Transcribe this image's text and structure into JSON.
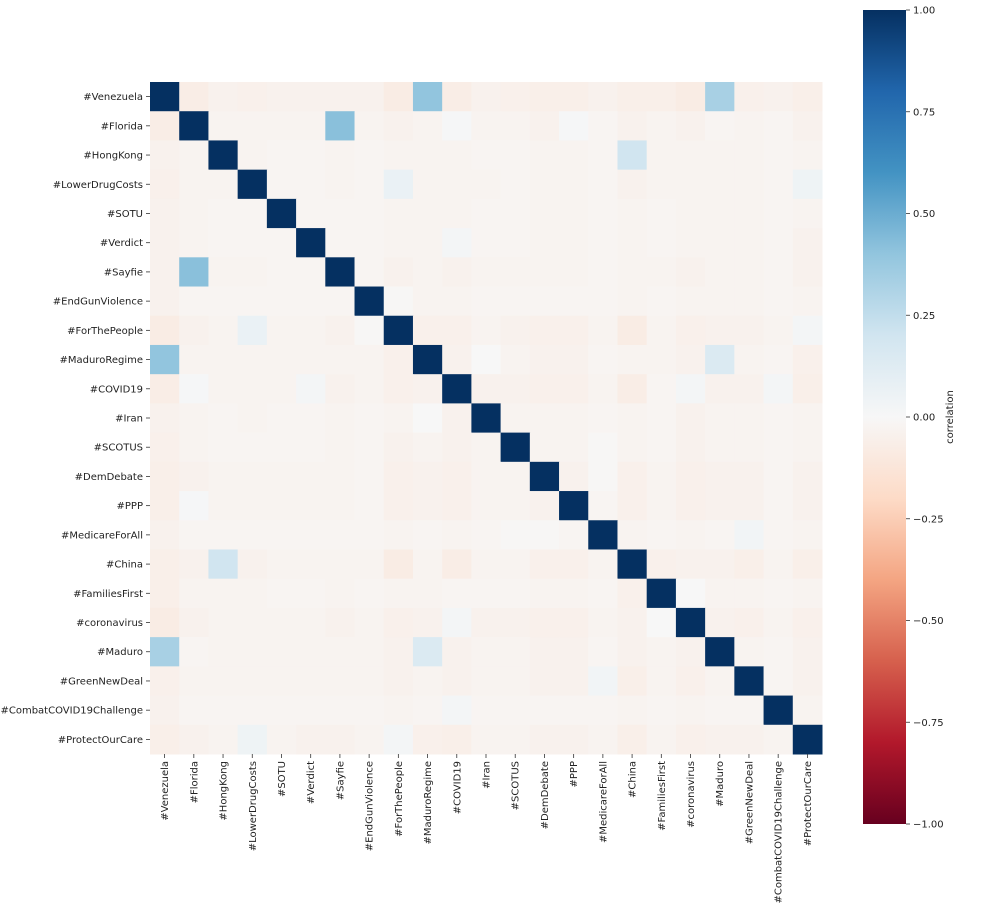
{
  "chart_data": {
    "type": "heatmap",
    "title": "",
    "colorbar_label": "correlation",
    "colormap": "RdBu_r",
    "vmin": -1.0,
    "vmax": 1.0,
    "colorbar_ticks": [
      "1.00",
      "0.75",
      "0.50",
      "0.25",
      "0.00",
      "−0.25",
      "−0.50",
      "−0.75",
      "−1.00"
    ],
    "colorbar_tick_values": [
      1.0,
      0.75,
      0.5,
      0.25,
      0.0,
      -0.25,
      -0.5,
      -0.75,
      -1.0
    ],
    "colormap_stops": [
      "#67001f",
      "#b2182b",
      "#d6604d",
      "#f4a582",
      "#fddbc7",
      "#f7f7f7",
      "#d1e5f0",
      "#92c5de",
      "#4393c3",
      "#2166ac",
      "#053061"
    ],
    "labels": [
      "#Venezuela",
      "#Florida",
      "#HongKong",
      "#LowerDrugCosts",
      "#SOTU",
      "#Verdict",
      "#Sayfie",
      "#EndGunViolence",
      "#ForThePeople",
      "#MaduroRegime",
      "#COVID19",
      "#Iran",
      "#SCOTUS",
      "#DemDebate",
      "#PPP",
      "#MedicareForAll",
      "#China",
      "#FamiliesFirst",
      "#coronavirus",
      "#Maduro",
      "#GreenNewDeal",
      "#CombatCOVID19Challenge",
      "#ProtectOurCare"
    ],
    "matrix": [
      [
        1,
        -0.07,
        -0.04,
        -0.05,
        -0.04,
        -0.04,
        -0.04,
        -0.04,
        -0.08,
        0.4,
        -0.07,
        -0.04,
        -0.05,
        -0.06,
        -0.06,
        -0.04,
        -0.06,
        -0.06,
        -0.08,
        0.33,
        -0.05,
        -0.04,
        -0.06
      ],
      [
        -0.07,
        1,
        -0.03,
        -0.03,
        -0.03,
        -0.03,
        0.42,
        -0.03,
        -0.04,
        -0.03,
        0.01,
        -0.03,
        -0.03,
        -0.04,
        0.01,
        -0.02,
        -0.04,
        -0.03,
        -0.04,
        -0.02,
        -0.03,
        -0.02,
        -0.04
      ],
      [
        -0.04,
        -0.03,
        1,
        -0.03,
        -0.02,
        -0.02,
        -0.03,
        -0.02,
        -0.03,
        -0.03,
        -0.03,
        -0.02,
        -0.02,
        -0.03,
        -0.03,
        -0.02,
        0.2,
        -0.03,
        -0.03,
        -0.03,
        -0.03,
        -0.02,
        -0.03
      ],
      [
        -0.05,
        -0.03,
        -0.03,
        1,
        -0.02,
        -0.02,
        -0.03,
        -0.02,
        0.07,
        -0.03,
        -0.03,
        -0.03,
        -0.02,
        -0.03,
        -0.03,
        -0.02,
        -0.04,
        -0.03,
        -0.03,
        -0.03,
        -0.03,
        -0.02,
        0.05
      ],
      [
        -0.04,
        -0.03,
        -0.02,
        -0.02,
        1,
        -0.02,
        -0.02,
        -0.02,
        -0.03,
        -0.03,
        -0.03,
        -0.02,
        -0.02,
        -0.03,
        -0.03,
        -0.02,
        -0.03,
        -0.02,
        -0.03,
        -0.03,
        -0.03,
        -0.02,
        -0.03
      ],
      [
        -0.04,
        -0.03,
        -0.02,
        -0.02,
        -0.02,
        1,
        -0.02,
        -0.02,
        -0.03,
        -0.03,
        0.02,
        -0.02,
        -0.02,
        -0.03,
        -0.03,
        -0.02,
        -0.03,
        -0.02,
        -0.03,
        -0.03,
        -0.03,
        -0.02,
        -0.04
      ],
      [
        -0.04,
        0.42,
        -0.03,
        -0.03,
        -0.02,
        -0.02,
        1,
        -0.02,
        -0.04,
        -0.03,
        -0.04,
        -0.03,
        -0.03,
        -0.03,
        -0.03,
        -0.02,
        -0.03,
        -0.03,
        -0.04,
        -0.03,
        -0.03,
        -0.02,
        -0.04
      ],
      [
        -0.04,
        -0.02,
        -0.02,
        -0.02,
        -0.02,
        -0.02,
        -0.02,
        1,
        -0.01,
        -0.03,
        -0.03,
        -0.02,
        -0.02,
        -0.02,
        -0.02,
        -0.02,
        -0.03,
        -0.02,
        -0.03,
        -0.03,
        -0.03,
        -0.02,
        -0.03
      ],
      [
        -0.08,
        -0.04,
        -0.03,
        0.07,
        -0.03,
        -0.03,
        -0.04,
        -0.01,
        1,
        -0.05,
        -0.05,
        -0.03,
        -0.04,
        -0.05,
        -0.05,
        -0.03,
        -0.08,
        -0.03,
        -0.05,
        -0.04,
        -0.04,
        -0.03,
        0.02
      ],
      [
        0.4,
        -0.03,
        -0.03,
        -0.03,
        -0.03,
        -0.03,
        -0.03,
        -0.03,
        -0.05,
        1,
        -0.04,
        0.0,
        -0.03,
        -0.04,
        -0.04,
        -0.02,
        -0.03,
        -0.03,
        -0.04,
        0.15,
        -0.03,
        -0.02,
        -0.05
      ],
      [
        -0.07,
        0.01,
        -0.03,
        -0.03,
        -0.03,
        0.02,
        -0.04,
        -0.03,
        -0.05,
        -0.04,
        1,
        -0.04,
        -0.04,
        -0.05,
        -0.05,
        -0.03,
        -0.07,
        -0.02,
        0.02,
        -0.04,
        -0.04,
        0.02,
        -0.06
      ],
      [
        -0.04,
        -0.03,
        -0.02,
        -0.03,
        -0.02,
        -0.02,
        -0.03,
        -0.02,
        -0.03,
        0.0,
        -0.04,
        1,
        -0.03,
        -0.03,
        -0.03,
        -0.02,
        -0.03,
        -0.02,
        -0.04,
        -0.03,
        -0.03,
        -0.02,
        -0.03
      ],
      [
        -0.05,
        -0.03,
        -0.02,
        -0.02,
        -0.02,
        -0.02,
        -0.03,
        -0.02,
        -0.04,
        -0.03,
        -0.04,
        -0.03,
        1,
        -0.03,
        -0.03,
        -0.01,
        -0.03,
        -0.02,
        -0.04,
        -0.03,
        -0.03,
        -0.02,
        -0.03
      ],
      [
        -0.06,
        -0.04,
        -0.03,
        -0.03,
        -0.03,
        -0.03,
        -0.03,
        -0.02,
        -0.05,
        -0.04,
        -0.05,
        -0.03,
        -0.03,
        1,
        -0.04,
        -0.01,
        -0.05,
        -0.03,
        -0.05,
        -0.04,
        -0.04,
        -0.02,
        -0.04
      ],
      [
        -0.06,
        0.01,
        -0.03,
        -0.03,
        -0.03,
        -0.03,
        -0.03,
        -0.02,
        -0.05,
        -0.04,
        -0.05,
        -0.03,
        -0.03,
        -0.04,
        1,
        -0.02,
        -0.05,
        -0.03,
        -0.05,
        -0.04,
        -0.04,
        -0.02,
        -0.04
      ],
      [
        -0.04,
        -0.02,
        -0.02,
        -0.02,
        -0.02,
        -0.02,
        -0.02,
        -0.02,
        -0.03,
        -0.02,
        -0.03,
        -0.02,
        -0.01,
        -0.01,
        -0.02,
        1,
        -0.03,
        -0.02,
        -0.03,
        -0.02,
        0.03,
        -0.02,
        -0.03
      ],
      [
        -0.06,
        -0.04,
        0.2,
        -0.04,
        -0.03,
        -0.03,
        -0.03,
        -0.03,
        -0.08,
        -0.03,
        -0.07,
        -0.03,
        -0.03,
        -0.05,
        -0.05,
        -0.03,
        1,
        -0.05,
        -0.04,
        -0.04,
        -0.06,
        -0.03,
        -0.06
      ],
      [
        -0.06,
        -0.03,
        -0.03,
        -0.03,
        -0.02,
        -0.02,
        -0.03,
        -0.02,
        -0.03,
        -0.03,
        -0.02,
        -0.02,
        -0.02,
        -0.03,
        -0.03,
        -0.02,
        -0.05,
        1,
        0.0,
        -0.03,
        -0.03,
        -0.02,
        -0.03
      ],
      [
        -0.08,
        -0.04,
        -0.03,
        -0.03,
        -0.03,
        -0.03,
        -0.04,
        -0.03,
        -0.05,
        -0.04,
        0.02,
        -0.04,
        -0.04,
        -0.05,
        -0.05,
        -0.03,
        -0.04,
        0.0,
        1,
        -0.04,
        -0.05,
        -0.03,
        -0.05
      ],
      [
        0.33,
        -0.02,
        -0.03,
        -0.03,
        -0.03,
        -0.03,
        -0.03,
        -0.03,
        -0.04,
        0.15,
        -0.04,
        -0.03,
        -0.03,
        -0.04,
        -0.04,
        -0.02,
        -0.04,
        -0.03,
        -0.04,
        1,
        -0.03,
        -0.02,
        -0.04
      ],
      [
        -0.05,
        -0.03,
        -0.03,
        -0.03,
        -0.03,
        -0.03,
        -0.03,
        -0.03,
        -0.04,
        -0.03,
        -0.04,
        -0.03,
        -0.03,
        -0.04,
        -0.04,
        0.03,
        -0.06,
        -0.03,
        -0.05,
        -0.03,
        1,
        -0.02,
        -0.04
      ],
      [
        -0.04,
        -0.02,
        -0.02,
        -0.02,
        -0.02,
        -0.02,
        -0.02,
        -0.02,
        -0.03,
        -0.02,
        0.02,
        -0.02,
        -0.02,
        -0.02,
        -0.02,
        -0.02,
        -0.03,
        -0.02,
        -0.03,
        -0.02,
        -0.02,
        1,
        -0.03
      ],
      [
        -0.06,
        -0.04,
        -0.03,
        0.05,
        -0.03,
        -0.04,
        -0.04,
        -0.03,
        0.02,
        -0.05,
        -0.06,
        -0.03,
        -0.03,
        -0.04,
        -0.04,
        -0.03,
        -0.06,
        -0.03,
        -0.05,
        -0.04,
        -0.04,
        -0.03,
        1
      ]
    ]
  }
}
